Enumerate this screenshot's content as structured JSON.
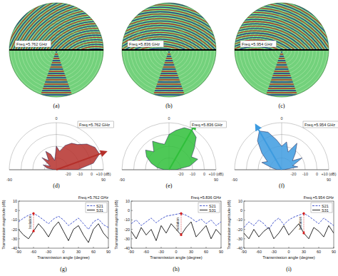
{
  "chart_data": [
    {
      "type": "field",
      "title": "(a)",
      "annotation": "Freq.=5.762 GHz",
      "beam_angle": -50
    },
    {
      "type": "field",
      "title": "(b)",
      "annotation": "Freq.=5.836 GHz",
      "beam_angle": 10
    },
    {
      "type": "field",
      "title": "(c)",
      "annotation": "Freq.=5.954 GHz",
      "beam_angle": 30
    },
    {
      "type": "polar",
      "title": "(d)",
      "annotation": "Freq.=5.762 GHz",
      "color": "#b5302b",
      "x": [
        -90,
        -80,
        -70,
        -60,
        -50,
        -40,
        -30,
        -20,
        -10,
        0,
        10,
        20,
        30,
        40,
        50,
        60,
        70,
        80,
        90
      ],
      "values": [
        -28,
        -22,
        -18,
        -24,
        -14,
        -20,
        -12,
        -16,
        -22,
        -10,
        -14,
        -8,
        -4,
        -2,
        4,
        8,
        9,
        2,
        -12
      ],
      "xlim": [
        -90,
        90
      ],
      "xticks": [
        -90,
        0,
        90
      ],
      "ylim": [
        -30,
        10
      ],
      "yticks": [
        -20,
        -10,
        0,
        {
          "value": 10,
          "label": "+10 (dB)"
        }
      ]
    },
    {
      "type": "polar",
      "title": "(e)",
      "annotation": "Freq.=5.836 GHz",
      "color": "#2fbf3a",
      "x": [
        -90,
        -80,
        -70,
        -60,
        -50,
        -40,
        -30,
        -20,
        -10,
        0,
        10,
        20,
        30,
        40,
        50,
        60,
        70,
        80,
        90
      ],
      "values": [
        -26,
        -20,
        -14,
        -8,
        -4,
        -10,
        -2,
        -6,
        -8,
        0,
        4,
        8,
        9,
        6,
        -2,
        -8,
        -4,
        -12,
        -24
      ],
      "xlim": [
        -90,
        90
      ],
      "xticks": [
        -90,
        0,
        90
      ],
      "ylim": [
        -30,
        10
      ],
      "yticks": [
        -20,
        -10,
        0,
        {
          "value": 10,
          "label": "+10 (dB)"
        }
      ]
    },
    {
      "type": "polar",
      "title": "(f)",
      "annotation": "Freq.=5.954 GHz",
      "color": "#3d9be0",
      "x": [
        -90,
        -80,
        -70,
        -60,
        -50,
        -40,
        -30,
        -20,
        -10,
        0,
        10,
        20,
        30,
        40,
        50,
        60,
        70,
        80,
        90
      ],
      "values": [
        -26,
        -22,
        -12,
        -16,
        -8,
        2,
        8,
        4,
        -4,
        -10,
        -6,
        -14,
        -4,
        -12,
        -18,
        -10,
        -20,
        -16,
        -28
      ],
      "xlim": [
        -90,
        90
      ],
      "xticks": [
        -90,
        0,
        90
      ],
      "ylim": [
        -30,
        10
      ],
      "yticks": [
        -20,
        -10,
        0,
        {
          "value": 10,
          "label": "+10 (dB)"
        }
      ]
    },
    {
      "type": "line",
      "title": "(g)",
      "annotation": "Freq.=5.762 GHz",
      "xlabel": "Transmission angle (degree)",
      "ylabel": "Transmission magnitude (dB)",
      "x": [
        -90,
        -80,
        -70,
        -60,
        -50,
        -40,
        -30,
        -20,
        -10,
        0,
        10,
        20,
        30,
        40,
        50,
        60,
        70,
        80,
        90
      ],
      "series": [
        {
          "name": "S21",
          "color": "#3347c8",
          "line_style": "dashed",
          "values": [
            -12,
            -8,
            -5,
            -3,
            -6,
            -10,
            -14,
            -9,
            -6,
            -10,
            -16,
            -12,
            -8,
            -14,
            -20,
            -12,
            -9,
            -15,
            -18
          ]
        },
        {
          "name": "S31",
          "color": "#111111",
          "line_style": "solid",
          "values": [
            -20,
            -26,
            -30,
            -22,
            -14,
            -20,
            -28,
            -18,
            -12,
            -22,
            -32,
            -20,
            -16,
            -26,
            -34,
            -20,
            -14,
            -24,
            -30
          ]
        }
      ],
      "xlim": [
        -90,
        90
      ],
      "xticks": [
        -90,
        -60,
        -30,
        0,
        30,
        60,
        90
      ],
      "ylim": [
        -40,
        10
      ],
      "yticks": [
        -40,
        -30,
        -20,
        -10,
        0,
        10
      ],
      "grid": false,
      "legend": "upper right",
      "annotations": [
        {
          "text": "Isolation",
          "x": -60
        }
      ]
    },
    {
      "type": "line",
      "title": "(h)",
      "annotation": "Freq.=5.836 GHz",
      "xlabel": "Transmission angle (degree)",
      "ylabel": "Transmission magnitude (dB)",
      "x": [
        -90,
        -80,
        -70,
        -60,
        -50,
        -40,
        -30,
        -20,
        -10,
        0,
        10,
        20,
        30,
        40,
        50,
        60,
        70,
        80,
        90
      ],
      "series": [
        {
          "name": "S21",
          "color": "#3347c8",
          "line_style": "dashed",
          "values": [
            -14,
            -10,
            -16,
            -12,
            -8,
            -13,
            -9,
            -6,
            -5,
            -4,
            -3,
            -5,
            -8,
            -12,
            -9,
            -14,
            -10,
            -16,
            -12
          ]
        },
        {
          "name": "S31",
          "color": "#111111",
          "line_style": "solid",
          "values": [
            -22,
            -30,
            -18,
            -26,
            -20,
            -32,
            -16,
            -24,
            -14,
            -20,
            -26,
            -18,
            -12,
            -28,
            -22,
            -16,
            -30,
            -20,
            -26
          ]
        }
      ],
      "xlim": [
        -90,
        90
      ],
      "xticks": [
        -90,
        -60,
        -30,
        0,
        30,
        60,
        90
      ],
      "ylim": [
        -40,
        10
      ],
      "yticks": [
        -40,
        -30,
        -20,
        -10,
        0,
        10
      ],
      "grid": false,
      "legend": "upper right",
      "annotations": [
        {
          "text": "Isolation",
          "x": 10
        }
      ]
    },
    {
      "type": "line",
      "title": "(i)",
      "annotation": "Freq.=5.954 GHz",
      "xlabel": "Transmission angle (degree)",
      "ylabel": "Transmission magnitude (dB)",
      "x": [
        -90,
        -80,
        -70,
        -60,
        -50,
        -40,
        -30,
        -20,
        -10,
        0,
        10,
        20,
        30,
        40,
        50,
        60,
        70,
        80,
        90
      ],
      "series": [
        {
          "name": "S21",
          "color": "#3347c8",
          "line_style": "dashed",
          "values": [
            -18,
            -12,
            -16,
            -10,
            -14,
            -20,
            -12,
            -8,
            -15,
            -10,
            -7,
            -5,
            -3,
            -6,
            -10,
            -14,
            -8,
            -12,
            -16
          ]
        },
        {
          "name": "S31",
          "color": "#111111",
          "line_style": "solid",
          "values": [
            -24,
            -30,
            -20,
            -28,
            -22,
            -18,
            -30,
            -24,
            -16,
            -26,
            -20,
            -14,
            -24,
            -30,
            -18,
            -22,
            -28,
            -16,
            -24
          ]
        }
      ],
      "xlim": [
        -90,
        90
      ],
      "xticks": [
        -90,
        -60,
        -30,
        0,
        30,
        60,
        90
      ],
      "ylim": [
        -40,
        10
      ],
      "yticks": [
        -40,
        -30,
        -20,
        -10,
        0,
        10
      ],
      "grid": false,
      "legend": "upper right",
      "annotations": [
        {
          "text": "Isolation",
          "x": 30
        }
      ]
    }
  ]
}
